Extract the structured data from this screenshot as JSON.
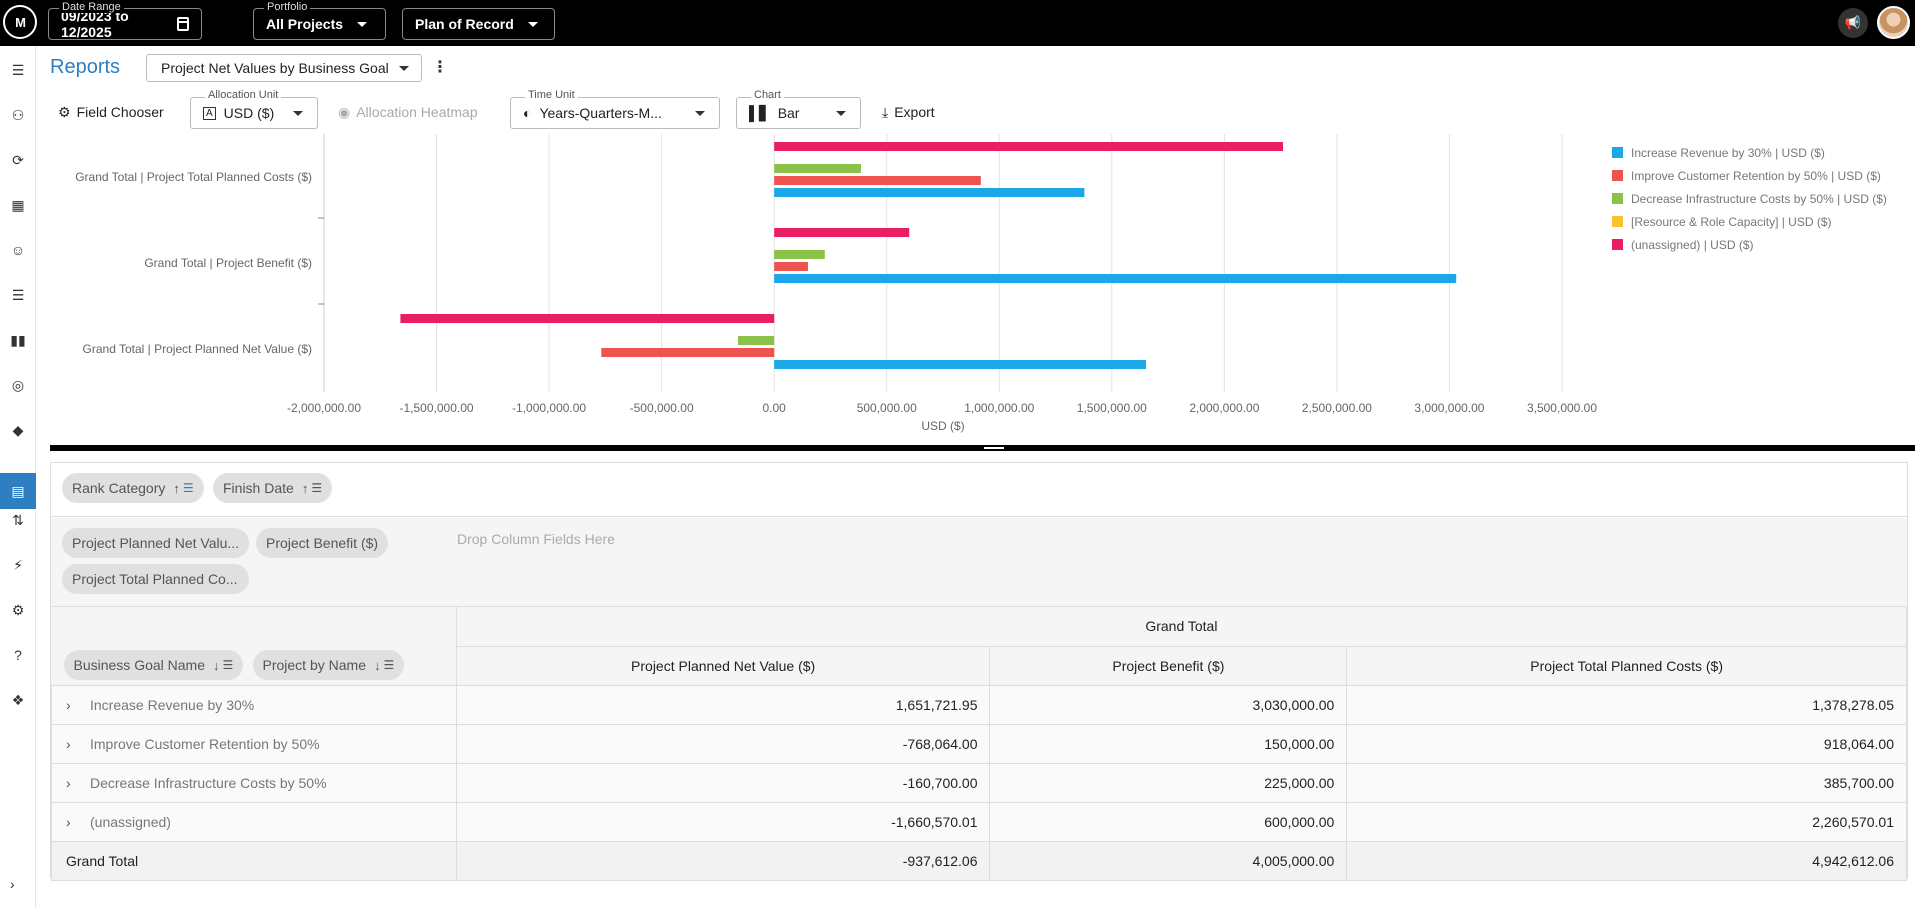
{
  "topbar": {
    "date_range_label": "Date Range",
    "date_range_value": "09/2023 to 12/2025",
    "portfolio_label": "Portfolio",
    "portfolio_value": "All Projects",
    "plan_value": "Plan of Record"
  },
  "sidebar": {
    "icons": [
      "menu-icon",
      "user-list-icon",
      "refresh-icon",
      "clipboard-icon",
      "team-icon",
      "list-icon",
      "board-icon",
      "target-icon",
      "roadmap-icon",
      "reports-icon",
      "transfer-icon",
      "plugin-icon",
      "gear-icon",
      "help-icon",
      "compass-icon"
    ],
    "active": "reports-icon"
  },
  "header": {
    "title": "Reports",
    "report_name": "Project Net Values by Business Goal"
  },
  "toolbar": {
    "field_chooser": "Field Chooser",
    "allocation_unit_label": "Allocation Unit",
    "allocation_unit_value": "USD ($)",
    "allocation_heatmap": "Allocation Heatmap",
    "time_unit_label": "Time Unit",
    "time_unit_value": "Years-Quarters-M...",
    "chart_label": "Chart",
    "chart_value": "Bar",
    "export": "Export"
  },
  "chart_data": {
    "type": "bar",
    "orientation": "horizontal",
    "categories": [
      "Grand Total | Project Total Planned Costs ($)",
      "Grand Total | Project Benefit ($)",
      "Grand Total | Project Planned Net Value ($)"
    ],
    "series": [
      {
        "name": "Increase Revenue by 30% | USD ($)",
        "color": "#1ba8e8",
        "values": [
          1378278.05,
          3030000.0,
          1651721.95
        ]
      },
      {
        "name": "Improve Customer Retention by 50% | USD ($)",
        "color": "#ef5350",
        "values": [
          918064.0,
          150000.0,
          -768064.0
        ]
      },
      {
        "name": "Decrease Infrastructure Costs by 50% | USD ($)",
        "color": "#8bc34a",
        "values": [
          385700.0,
          225000.0,
          -160700.0
        ]
      },
      {
        "name": "[Resource & Role Capacity] | USD ($)",
        "color": "#fbc02d",
        "values": [
          0,
          0,
          0
        ]
      },
      {
        "name": "(unassigned) | USD ($)",
        "color": "#e91e63",
        "values": [
          2260570.01,
          600000.0,
          -1660570.01
        ]
      }
    ],
    "xlabel": "USD ($)",
    "xlim": [
      -2000000,
      3500000
    ],
    "xticks": [
      -2000000,
      -1500000,
      -1000000,
      -500000,
      0,
      500000,
      1000000,
      1500000,
      2000000,
      2500000,
      3000000,
      3500000
    ],
    "xtick_labels": [
      "-2,000,000.00",
      "-1,500,000.00",
      "-1,000,000.00",
      "-500,000.00",
      "0.00",
      "500,000.00",
      "1,000,000.00",
      "1,500,000.00",
      "2,000,000.00",
      "2,500,000.00",
      "3,000,000.00",
      "3,500,000.00"
    ],
    "grid": "vertical",
    "legend_position": "right"
  },
  "pivot": {
    "filter_fields": [
      {
        "label": "Rank Category"
      },
      {
        "label": "Finish Date"
      }
    ],
    "data_fields": [
      "Project Planned Net Valu...",
      "Project Benefit ($)",
      "Project Total Planned Co..."
    ],
    "drop_column_text": "Drop Column Fields Here",
    "row_fields": [
      "Business Goal Name",
      "Project by Name"
    ],
    "grand_total_header": "Grand Total",
    "columns": [
      "Project Planned Net Value ($)",
      "Project Benefit ($)",
      "Project Total Planned Costs ($)"
    ],
    "rows": [
      {
        "label": "Increase Revenue by 30%",
        "values": [
          "1,651,721.95",
          "3,030,000.00",
          "1,378,278.05"
        ]
      },
      {
        "label": "Improve Customer Retention by 50%",
        "values": [
          "-768,064.00",
          "150,000.00",
          "918,064.00"
        ]
      },
      {
        "label": "Decrease Infrastructure Costs by 50%",
        "values": [
          "-160,700.00",
          "225,000.00",
          "385,700.00"
        ]
      },
      {
        "label": "(unassigned)",
        "values": [
          "-1,660,570.01",
          "600,000.00",
          "2,260,570.01"
        ]
      }
    ],
    "total": {
      "label": "Grand Total",
      "values": [
        "-937,612.06",
        "4,005,000.00",
        "4,942,612.06"
      ]
    }
  }
}
